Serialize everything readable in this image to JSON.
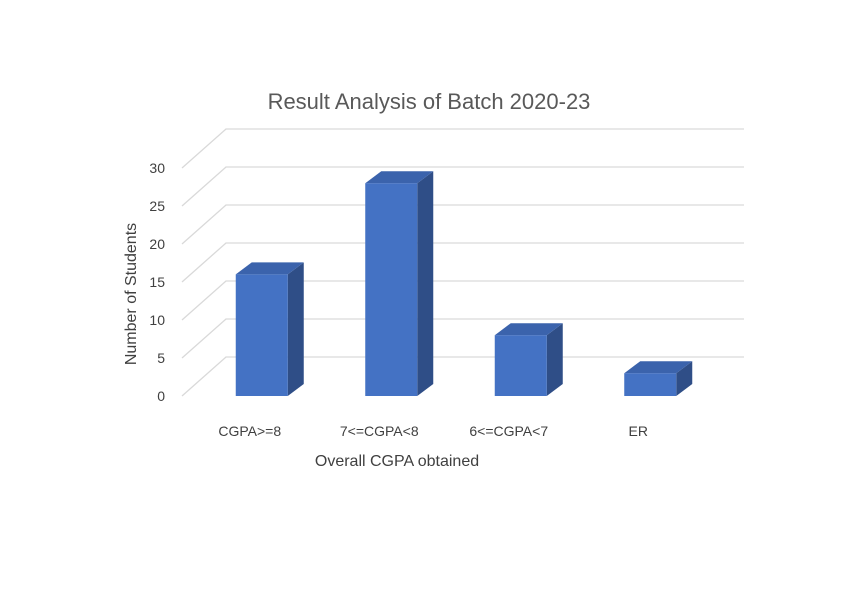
{
  "chart_data": {
    "type": "bar",
    "style": "3d-column",
    "title": "Result Analysis of Batch 2020-23",
    "xlabel": "Overall CGPA obtained",
    "ylabel": "Number of Students",
    "categories": [
      "CGPA>=8",
      "7<=CGPA<8",
      "6<=CGPA<7",
      "ER"
    ],
    "values": [
      16,
      28,
      8,
      3
    ],
    "ylim": [
      0,
      30
    ],
    "yticks": [
      0,
      5,
      10,
      15,
      20,
      25,
      30
    ],
    "grid": true,
    "legend": "none",
    "colors": {
      "bar_front": "#4472C4",
      "bar_side": "#2F4E87",
      "bar_top": "#3B63AC",
      "grid": "#D9D9D9"
    }
  }
}
